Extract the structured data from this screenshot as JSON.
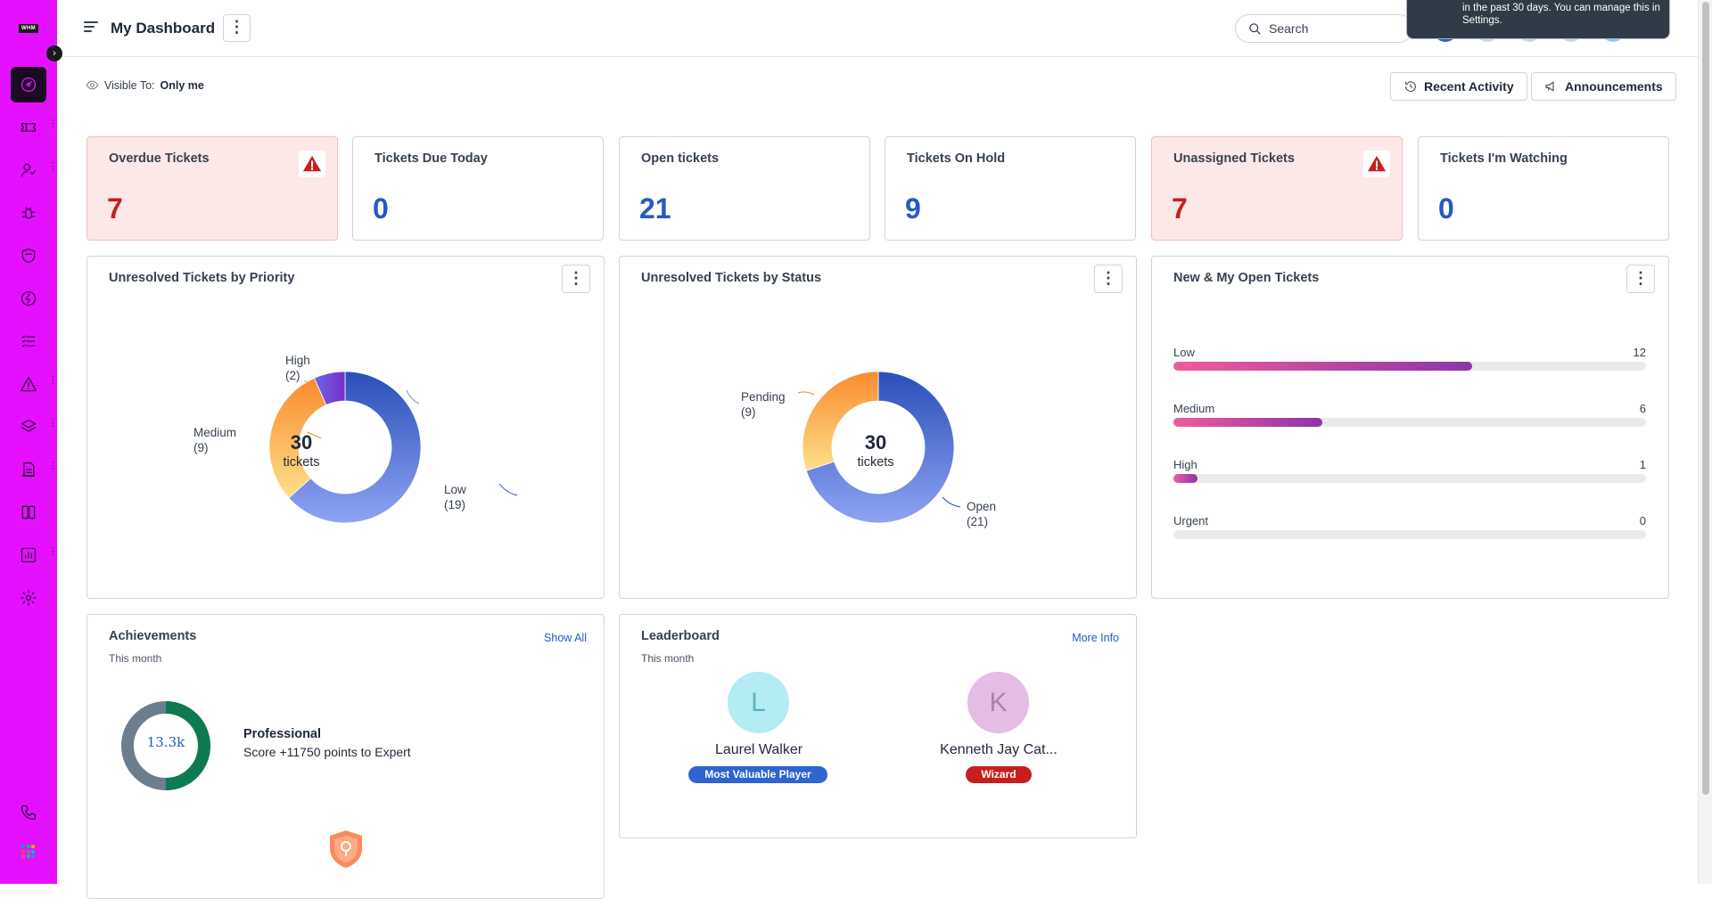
{
  "brand": {
    "logo_text": "WHM",
    "accent": "#e410ff"
  },
  "sidebar": {
    "toggle_icon": "chevron-right-icon",
    "items": [
      {
        "icon": "dashboard-icon",
        "active": true
      },
      {
        "icon": "ticket-icon"
      },
      {
        "icon": "contacts-icon"
      },
      {
        "icon": "bug-icon"
      },
      {
        "icon": "shield-icon"
      },
      {
        "icon": "bolt-icon"
      },
      {
        "icon": "tasks-icon"
      },
      {
        "icon": "warning-icon"
      },
      {
        "icon": "layers-icon"
      },
      {
        "icon": "document-icon"
      },
      {
        "icon": "book-icon"
      },
      {
        "icon": "report-icon"
      },
      {
        "icon": "gear-icon"
      }
    ],
    "bottom": [
      {
        "icon": "phone-icon"
      },
      {
        "icon": "apps-grid-icon"
      }
    ]
  },
  "header": {
    "title": "My Dashboard",
    "search_placeholder": "Search",
    "toast_text": "in the past 30 days. You can manage this in Settings."
  },
  "toolbar": {
    "visible_to_label": "Visible To:",
    "visible_to_value": "Only me",
    "recent_activity": "Recent Activity",
    "announcements": "Announcements"
  },
  "stats": [
    {
      "label": "Overdue Tickets",
      "value": "7",
      "alert": true
    },
    {
      "label": "Tickets Due Today",
      "value": "0",
      "alert": false
    },
    {
      "label": "Open tickets",
      "value": "21",
      "alert": false
    },
    {
      "label": "Tickets On Hold",
      "value": "9",
      "alert": false
    },
    {
      "label": "Unassigned Tickets",
      "value": "7",
      "alert": true
    },
    {
      "label": "Tickets I'm Watching",
      "value": "0",
      "alert": false
    }
  ],
  "priority_card": {
    "title": "Unresolved Tickets by Priority",
    "total": "30",
    "unit": "tickets",
    "labels": {
      "high": "High",
      "high_count": "(2)",
      "medium": "Medium",
      "medium_count": "(9)",
      "low": "Low",
      "low_count": "(19)"
    }
  },
  "status_card": {
    "title": "Unresolved Tickets by Status",
    "total": "30",
    "unit": "tickets",
    "labels": {
      "pending": "Pending",
      "pending_count": "(9)",
      "open": "Open",
      "open_count": "(21)"
    }
  },
  "open_card": {
    "title": "New & My Open Tickets",
    "rows": [
      {
        "label": "Low",
        "value": "12"
      },
      {
        "label": "Medium",
        "value": "6"
      },
      {
        "label": "High",
        "value": "1"
      },
      {
        "label": "Urgent",
        "value": "0"
      }
    ]
  },
  "achievements": {
    "title": "Achievements",
    "subtitle": "This month",
    "link": "Show All",
    "score": "13.3k",
    "level": "Professional",
    "next": "Score +11750 points to Expert"
  },
  "leaderboard": {
    "title": "Leaderboard",
    "subtitle": "This month",
    "link": "More Info",
    "people": [
      {
        "initial": "L",
        "name": "Laurel Walker",
        "badge": "Most Valuable Player"
      },
      {
        "initial": "K",
        "name": "Kenneth Jay Cat...",
        "badge": "Wizard"
      }
    ]
  },
  "chart_data": [
    {
      "type": "pie",
      "title": "Unresolved Tickets by Priority",
      "categories": [
        "Low",
        "Medium",
        "High"
      ],
      "values": [
        19,
        9,
        2
      ],
      "center_label": "30 tickets"
    },
    {
      "type": "pie",
      "title": "Unresolved Tickets by Status",
      "categories": [
        "Open",
        "Pending"
      ],
      "values": [
        21,
        9
      ],
      "center_label": "30 tickets"
    },
    {
      "type": "bar",
      "title": "New & My Open Tickets",
      "categories": [
        "Low",
        "Medium",
        "High",
        "Urgent"
      ],
      "values": [
        12,
        6,
        1,
        0
      ],
      "ylim": [
        0,
        19
      ]
    }
  ]
}
